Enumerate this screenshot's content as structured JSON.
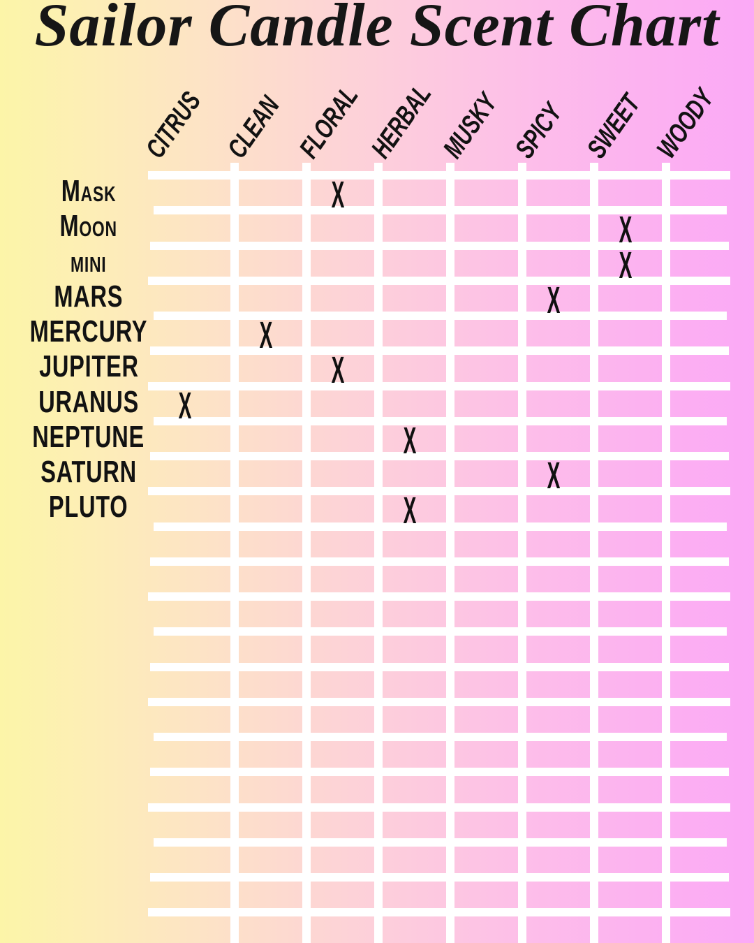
{
  "title": "Sailor Candle Scent Chart",
  "colors": {
    "gradient_left": "#fcf5a8",
    "gradient_peach": "#fde3c6",
    "gradient_pink": "#fdd1d9",
    "gradient_right": "#fba9f6",
    "grid_line": "#ffffff",
    "text": "#121212"
  },
  "chart_data": {
    "type": "table",
    "title": "Sailor Candle Scent Chart",
    "columns": [
      "CITRUS",
      "CLEAN",
      "FLORAL",
      "HERBAL",
      "MUSKY",
      "SPICY",
      "SWEET",
      "WOODY"
    ],
    "rows": [
      "Mask",
      "Moon",
      "mini",
      "MARS",
      "MERCURY",
      "JUPITER",
      "URANUS",
      "NEPTUNE",
      "SATURN",
      "PLUTO"
    ],
    "mark_symbol": "X",
    "marks": [
      {
        "row": "Mask",
        "column": "FLORAL"
      },
      {
        "row": "Moon",
        "column": "SWEET"
      },
      {
        "row": "mini",
        "column": "SWEET"
      },
      {
        "row": "MARS",
        "column": "SPICY"
      },
      {
        "row": "MERCURY",
        "column": "CLEAN"
      },
      {
        "row": "JUPITER",
        "column": "FLORAL"
      },
      {
        "row": "URANUS",
        "column": "CITRUS"
      },
      {
        "row": "NEPTUNE",
        "column": "HERBAL"
      },
      {
        "row": "SATURN",
        "column": "SPICY"
      },
      {
        "row": "PLUTO",
        "column": "HERBAL"
      }
    ],
    "empty_trailing_rows": 12,
    "grid_on": true,
    "legend_position": "none"
  }
}
